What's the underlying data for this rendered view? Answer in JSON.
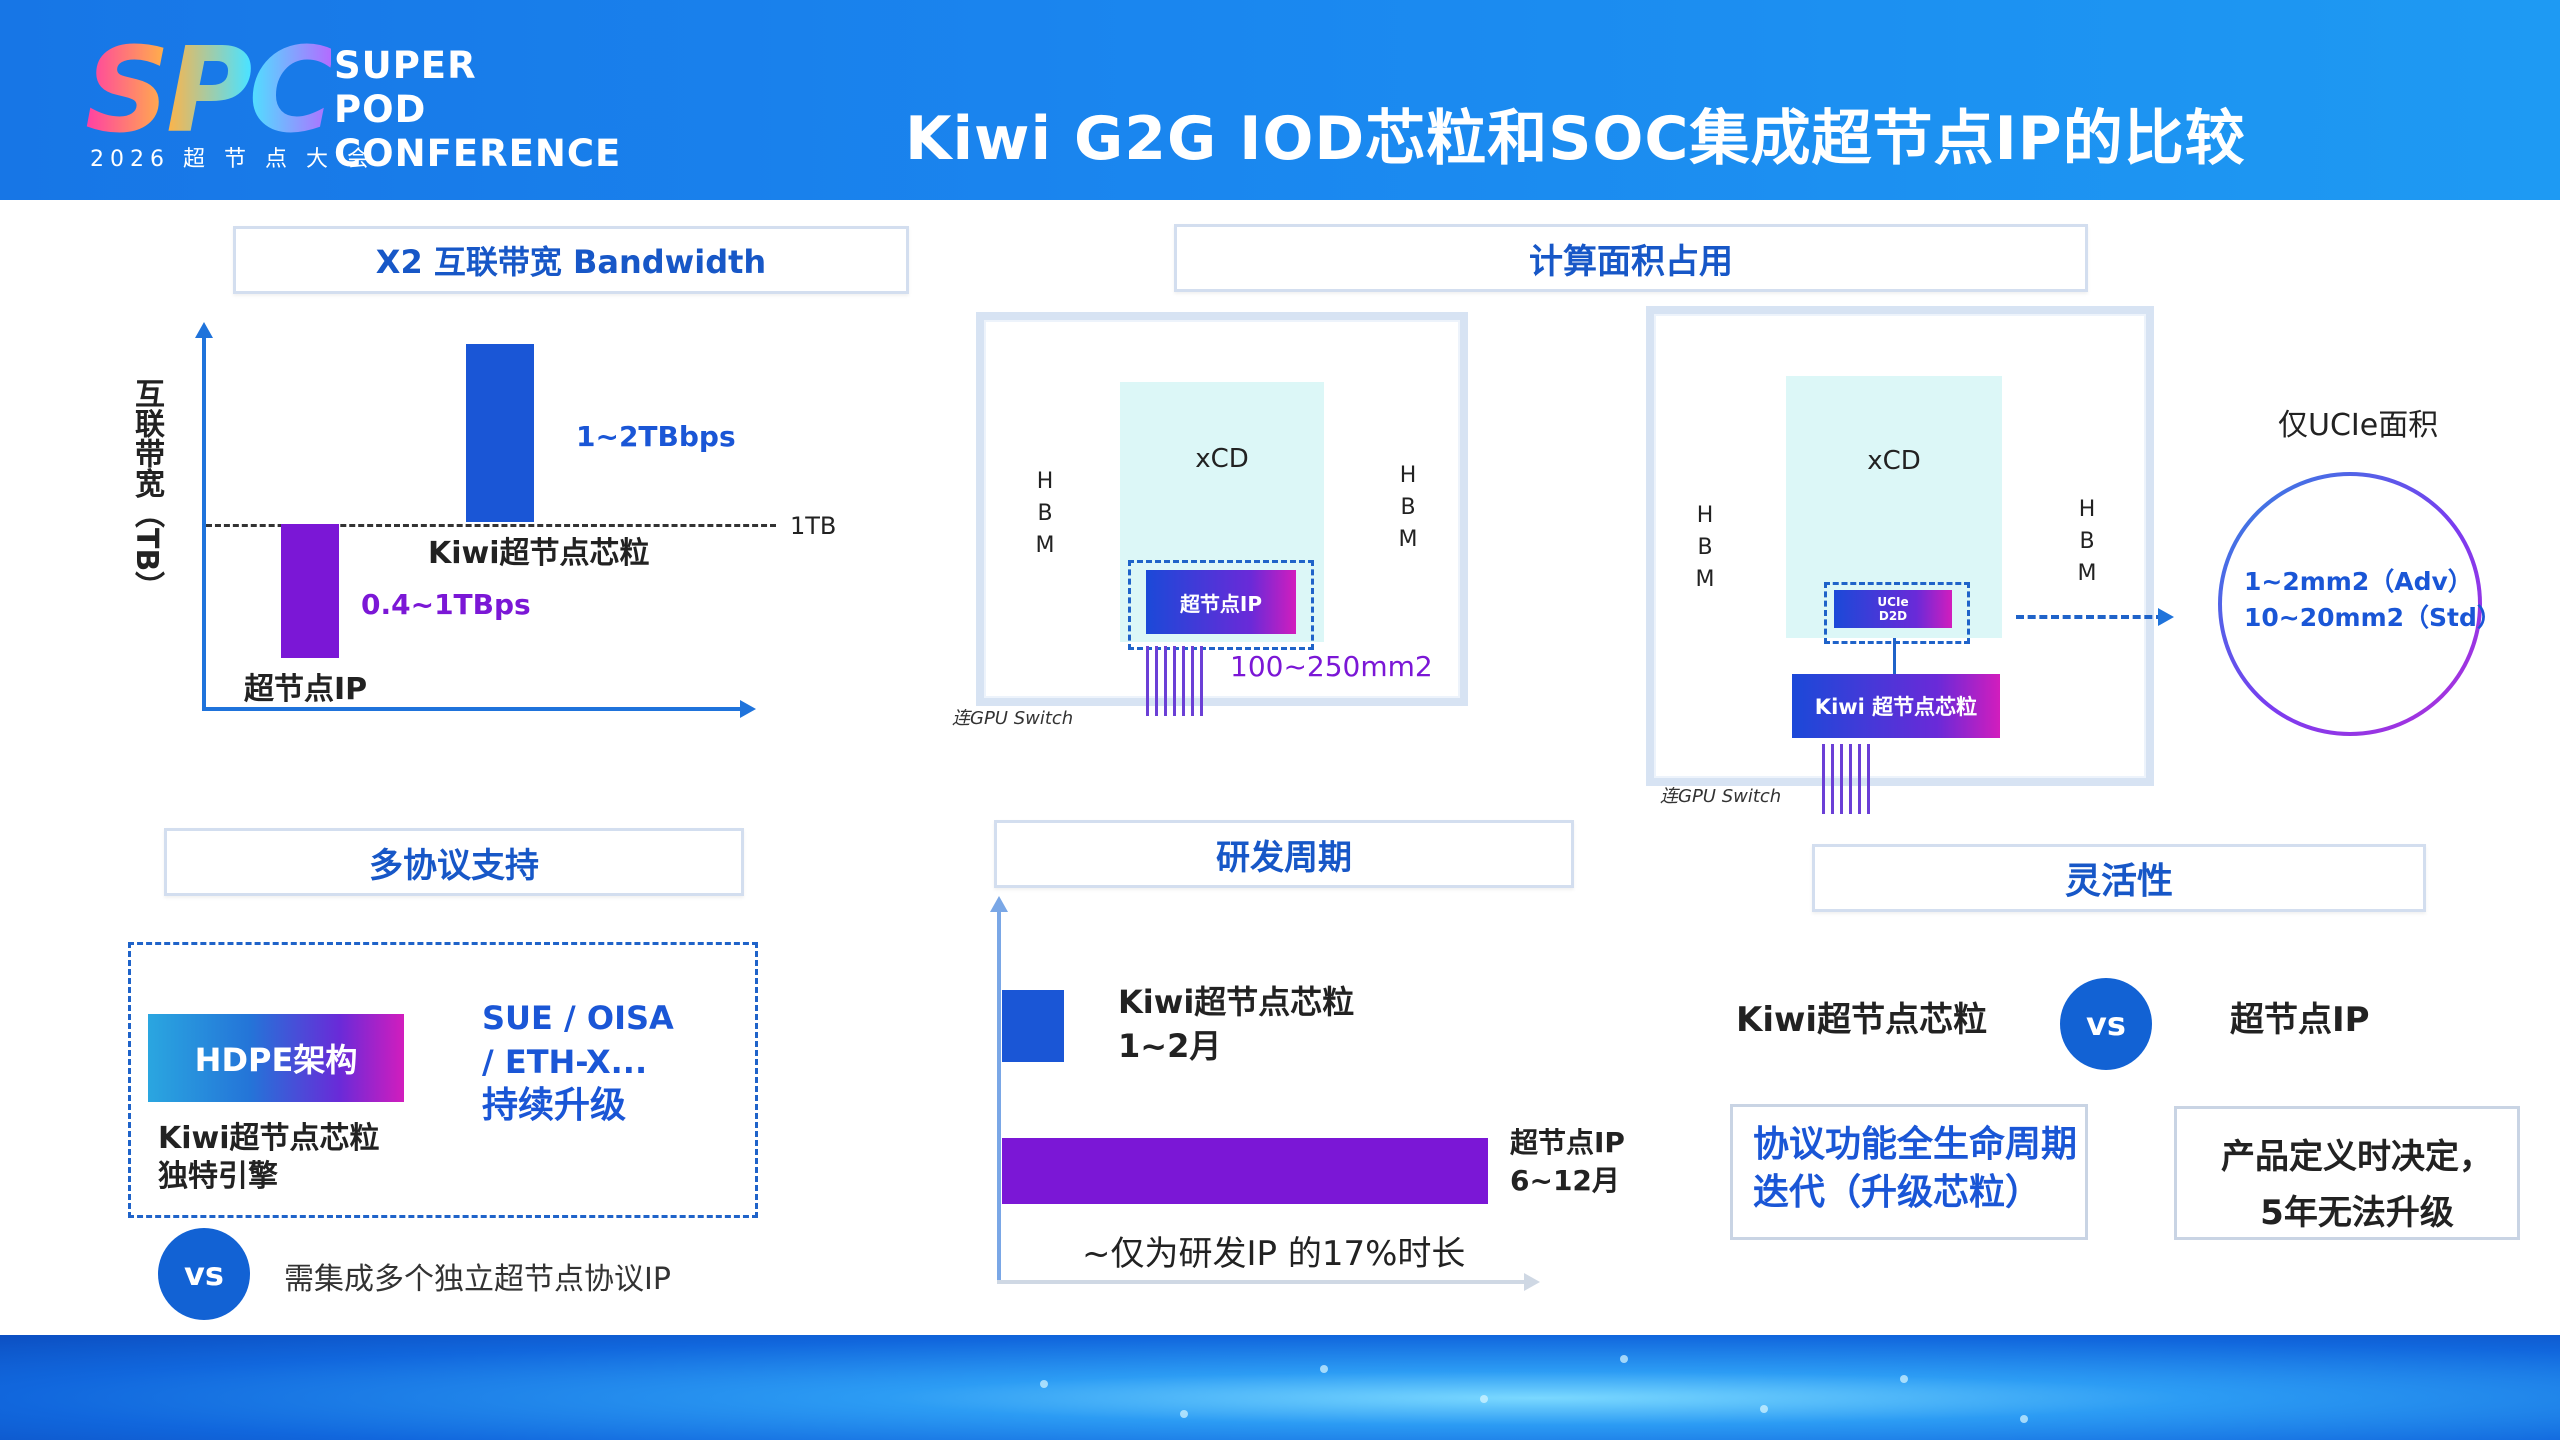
{
  "header": {
    "logo_mark": "SPC",
    "logo_year": "2026 超 节 点 大 会",
    "logo_line1": "SUPER",
    "logo_line2": "POD",
    "logo_line3": "CONFERENCE",
    "title": "Kiwi G2G IOD芯粒和SOC集成超节点IP的比较"
  },
  "bandwidth": {
    "section_label": "X2 互联带宽 Bandwidth",
    "y_axis_label": "互联带宽（TB）",
    "threshold_label": "1TB",
    "kiwi_value": "1~2TBbps",
    "kiwi_name": "Kiwi超节点芯粒",
    "ip_value": "0.4~1TBps",
    "ip_name": "超节点IP"
  },
  "area": {
    "section_label": "计算面积占用",
    "left": {
      "xcd": "xCD",
      "hbm_letters": [
        "H",
        "B",
        "M"
      ],
      "chip": "超节点IP",
      "size": "100~250mm2",
      "note": "连GPU Switch"
    },
    "right": {
      "xcd": "xCD",
      "hbm_letters": [
        "H",
        "B",
        "M"
      ],
      "ucie_line1": "UCIe",
      "ucie_line2": "D2D",
      "chip": "Kiwi 超节点芯粒",
      "note": "连GPU Switch"
    },
    "ucie_title": "仅UCIe面积",
    "ucie_adv": "1~2mm2（Adv）",
    "ucie_std": "10~20mm2（Std）"
  },
  "protocol": {
    "section_label": "多协议支持",
    "hdpe": "HDPE架构",
    "kiwi_line1": "Kiwi超节点芯粒",
    "kiwi_line2": "独特引擎",
    "sue_line1": "SUE / OISA",
    "sue_line2": "/ ETH-X...",
    "sue_line3": "持续升级",
    "vs": "vs",
    "compare_text": "需集成多个独立超节点协议IP"
  },
  "cycle": {
    "section_label": "研发周期",
    "kiwi_name": "Kiwi超节点芯粒",
    "kiwi_time": "1~2月",
    "ip_name": "超节点IP",
    "ip_time": "6~12月",
    "footnote": "~仅为研发IP 的17%时长"
  },
  "flex": {
    "section_label": "灵活性",
    "left_name": "Kiwi超节点芯粒",
    "vs": "vs",
    "right_name": "超节点IP",
    "left_box_line1": "协议功能全生命周期",
    "left_box_line2": "迭代（升级芯粒）",
    "right_box_line1": "产品定义时决定，",
    "right_box_line2": "5年无法升级"
  },
  "colors": {
    "blue": "#1a56d6",
    "purple": "#7b17d6",
    "accent_text": "#1757c7"
  }
}
